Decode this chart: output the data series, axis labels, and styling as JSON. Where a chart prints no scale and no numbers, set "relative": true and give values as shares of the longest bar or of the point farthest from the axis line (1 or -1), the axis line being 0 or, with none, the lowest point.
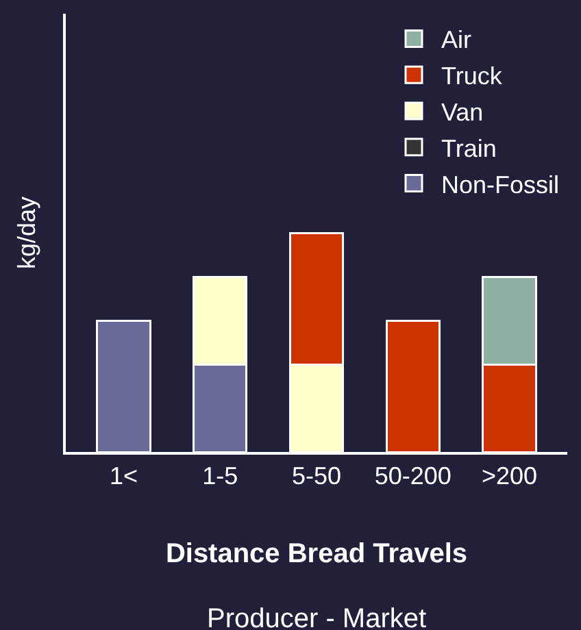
{
  "chart_data": {
    "type": "bar",
    "stacked": true,
    "relative": true,
    "categories": [
      "1<",
      "1-5",
      "5-50",
      "50-200",
      ">200"
    ],
    "series": [
      {
        "name": "Non-Fossil",
        "color": "#6a6a9a",
        "values": [
          0.6,
          0.4,
          null,
          null,
          null
        ]
      },
      {
        "name": "Train",
        "color": "#333333",
        "values": [
          null,
          null,
          null,
          null,
          null
        ]
      },
      {
        "name": "Van",
        "color": "#ffffcc",
        "values": [
          null,
          0.4,
          0.4,
          null,
          null
        ]
      },
      {
        "name": "Truck",
        "color": "#cc3300",
        "values": [
          null,
          null,
          0.6,
          0.6,
          0.4
        ]
      },
      {
        "name": "Air",
        "color": "#8fb0a0",
        "values": [
          null,
          null,
          null,
          null,
          0.4
        ]
      }
    ],
    "xlabel": "Distance Bread Travels",
    "ylabel": "kg/day",
    "annotations": [
      "Producer - Market"
    ],
    "legend": "top right",
    "grid": false
  }
}
